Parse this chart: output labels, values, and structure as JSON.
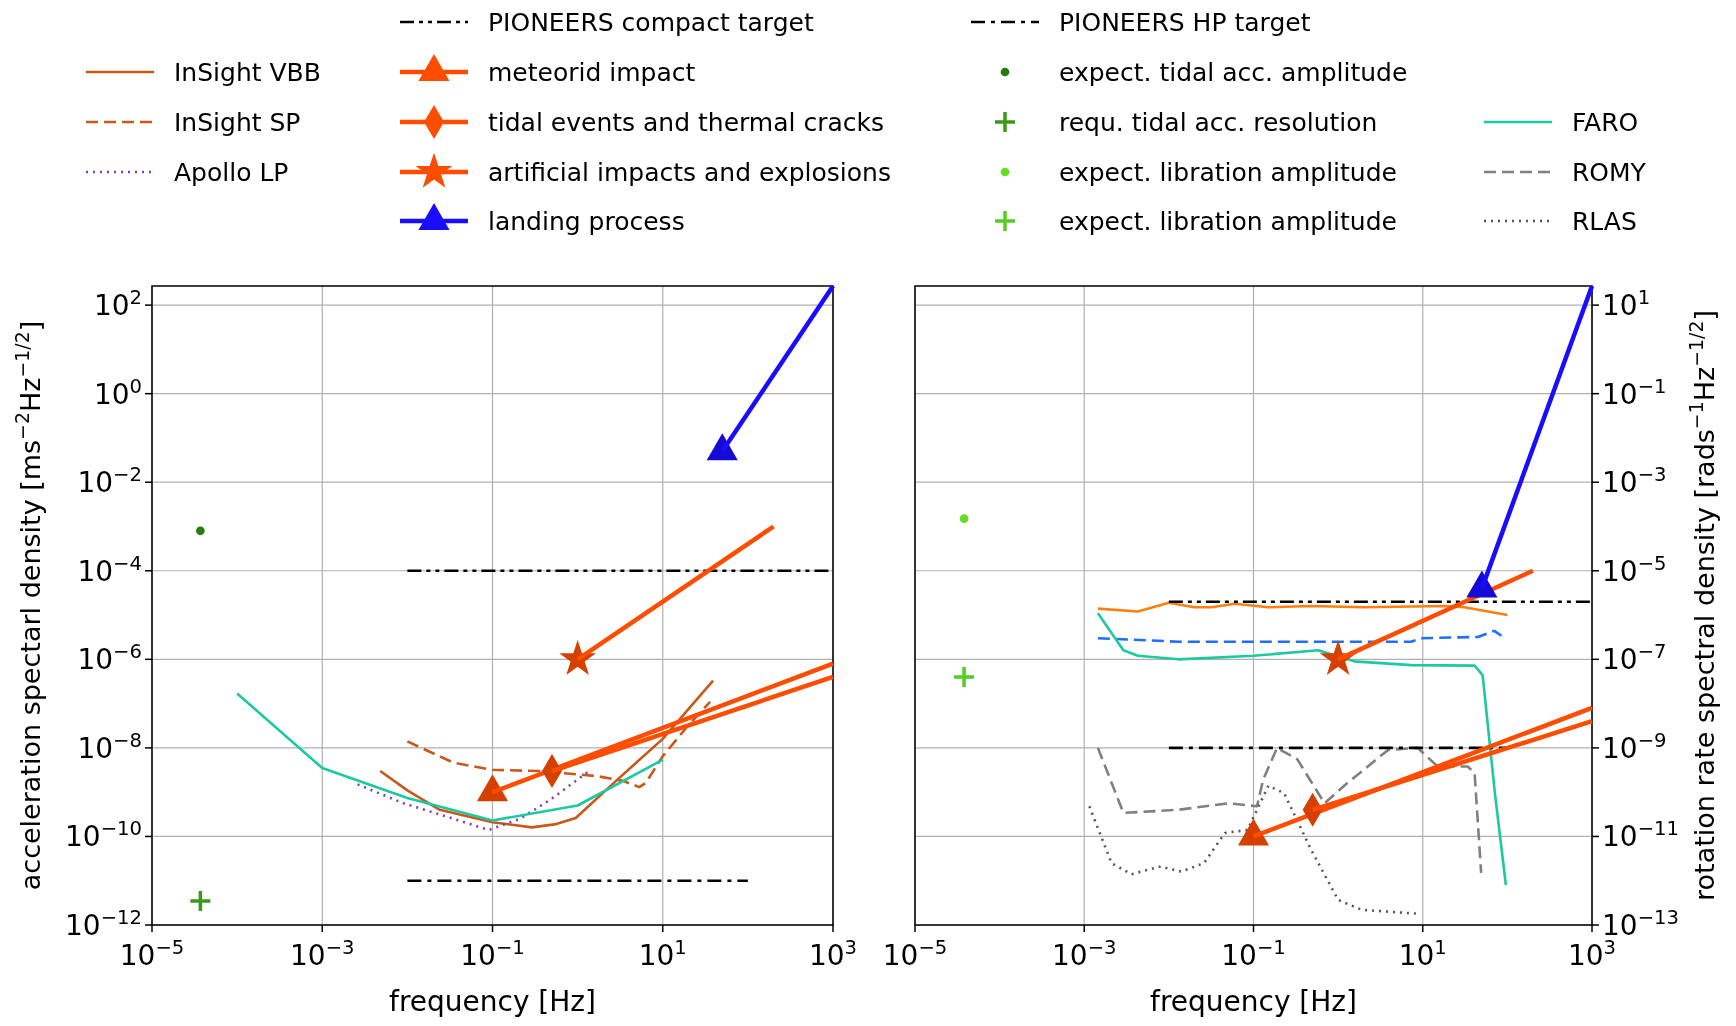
{
  "chart_data": [
    {
      "type": "line",
      "xlabel": "frequency [Hz]",
      "ylabel": "acceleration spectarl density [ms$^{−2}$Hz$^{−1/2}$]",
      "log": "xy",
      "grid": true,
      "legend": "top",
      "xlim": [
        1e-05,
        1000
      ],
      "xticks": [
        {
          "value": 1e-05,
          "label": "10$^{−5}$"
        },
        {
          "value": 0.001,
          "label": "10$^{−3}$"
        },
        {
          "value": 0.1,
          "label": "10$^{−1}$"
        },
        {
          "value": 10,
          "label": "10$^{1}$"
        },
        {
          "value": 1000,
          "label": "10$^{3}$"
        }
      ],
      "ylim": [
        1e-12,
        270
      ],
      "yticks": [
        {
          "value": 1e-12,
          "label": "10$^{−12}$"
        },
        {
          "value": 1e-10,
          "label": "10$^{−10}$"
        },
        {
          "value": 1e-08,
          "label": "10$^{−8}$"
        },
        {
          "value": 1e-06,
          "label": "10$^{−6}$"
        },
        {
          "value": 0.0001,
          "label": "10$^{−4}$"
        },
        {
          "value": 0.01,
          "label": "10$^{−2}$"
        },
        {
          "value": 1,
          "label": "10$^{0}$"
        },
        {
          "value": 100,
          "label": "10$^{2}$"
        }
      ],
      "series": [
        {
          "name": "InSight VBB",
          "color": "#c8581b",
          "line_style": "solid",
          "x": [
            0.0048,
            0.01,
            0.024,
            0.1,
            0.29,
            0.56,
            0.95,
            3,
            10,
            39
          ],
          "values": [
            3e-09,
            1.1e-09,
            4e-10,
            2.1e-10,
            1.6e-10,
            1.9e-10,
            2.6e-10,
            2e-09,
            1.6e-08,
            3.3e-07
          ]
        },
        {
          "name": "InSight SP",
          "color": "#c8581b",
          "line_style": "dashed",
          "x": [
            0.01,
            0.035,
            0.1,
            0.35,
            1.7,
            3.4,
            5.3,
            6.3,
            10,
            19,
            36
          ],
          "values": [
            1.4e-08,
            4.6e-09,
            3.2e-09,
            3e-09,
            2.3e-09,
            1.8e-09,
            1.3e-09,
            1.6e-09,
            6.5e-09,
            2.9e-08,
            1.1e-07
          ]
        },
        {
          "name": "Apollo LP",
          "color": "#7a3fbf",
          "line_style": "dotted",
          "x": [
            0.0026,
            0.009,
            0.035,
            0.09,
            0.21,
            0.49,
            1.3
          ],
          "values": [
            1.5e-09,
            5.6e-10,
            2.5e-10,
            1.4e-10,
            2.5e-10,
            7e-10,
            2.8e-09
          ]
        },
        {
          "color": "#1dc9a0",
          "line_style": "solid",
          "x": [
            0.0001,
            0.001,
            0.01,
            0.1,
            1,
            10
          ],
          "values": [
            1.7e-07,
            3.5e-09,
            7.4e-10,
            2.3e-10,
            5e-10,
            5.4e-09
          ]
        },
        {
          "name": "PIONEERS compact target",
          "color": "#000000",
          "line_style": "dashdotdot",
          "x": [
            0.01,
            1000
          ],
          "values": [
            0.0001,
            0.0001
          ]
        },
        {
          "name": "meteorid impact",
          "color": "#ff4d00",
          "line_style": "solid",
          "marker": "triangle",
          "x": [
            0.1,
            1000
          ],
          "values": [
            1e-09,
            8e-07
          ]
        },
        {
          "name": "tidal events and thermal cracks",
          "color": "#ff4d00",
          "line_style": "solid",
          "marker": "diamond",
          "x": [
            0.5,
            1000
          ],
          "values": [
            3e-09,
            4e-07
          ]
        },
        {
          "name": "artificial impacts and explosions",
          "color": "#ff4d00",
          "line_style": "solid",
          "marker": "star",
          "x": [
            1,
            200
          ],
          "values": [
            1e-06,
            0.001
          ]
        },
        {
          "name": "landing process",
          "color": "#1a0dff",
          "line_style": "solid",
          "marker": "triangle",
          "x": [
            50,
            1000
          ],
          "values": [
            0.05,
            270
          ]
        },
        {
          "name": "PIONEERS HP target",
          "color": "#000000",
          "line_style": "dashdot",
          "x": [
            0.01,
            100
          ],
          "values": [
            1e-11,
            1e-11
          ]
        },
        {
          "name": "expect. tidal acc. amplitude",
          "type": "scatter",
          "color": "#2a7a10",
          "marker": "circle",
          "x": [
            3.7e-05
          ],
          "values": [
            0.0008
          ]
        },
        {
          "name": "requ. tidal acc. resolution",
          "type": "scatter",
          "color": "#3a9a18",
          "marker": "cross",
          "x": [
            3.7e-05
          ],
          "values": [
            3.5e-12
          ]
        }
      ]
    },
    {
      "type": "line",
      "xlabel": "frequency [Hz]",
      "ylabel": "rotation rate spectral density [rads$^{−1}$Hz$^{−1/2}$]",
      "log": "xy",
      "grid": true,
      "legend": "top",
      "xlim": [
        1e-05,
        1000
      ],
      "xticks": [
        {
          "value": 1e-05,
          "label": "10$^{−5}$"
        },
        {
          "value": 0.001,
          "label": "10$^{−3}$"
        },
        {
          "value": 0.1,
          "label": "10$^{−1}$"
        },
        {
          "value": 10,
          "label": "10$^{1}$"
        },
        {
          "value": 1000,
          "label": "10$^{3}$"
        }
      ],
      "ylim": [
        1e-13,
        27
      ],
      "yticks": [
        {
          "value": 1e-13,
          "label": "10$^{−13}$"
        },
        {
          "value": 1e-11,
          "label": "10$^{−11}$"
        },
        {
          "value": 1e-09,
          "label": "10$^{−9}$"
        },
        {
          "value": 1e-07,
          "label": "10$^{−7}$"
        },
        {
          "value": 1e-05,
          "label": "10$^{−5}$"
        },
        {
          "value": 0.001,
          "label": "10$^{−3}$"
        },
        {
          "value": 0.1,
          "label": "10$^{−1}$"
        },
        {
          "value": 10,
          "label": "10$^{1}$"
        }
      ],
      "series": [
        {
          "name": "expect. libration amplitude",
          "type": "scatter",
          "color": "#66dd22",
          "marker": "circle",
          "x": [
            3.8e-05
          ],
          "values": [
            0.00015
          ]
        },
        {
          "name": "expect. libration amplitude",
          "type": "scatter",
          "color": "#55cc22",
          "marker": "cross",
          "x": [
            3.8e-05
          ],
          "values": [
            4e-08
          ]
        },
        {
          "color": "#ff7f0e",
          "line_style": "solid",
          "x": [
            0.00145,
            0.0043,
            0.01,
            0.02,
            0.032,
            0.06,
            0.15,
            0.48,
            2,
            18,
            31,
            100
          ],
          "values": [
            1.4e-06,
            1.2e-06,
            1.9e-06,
            1.5e-06,
            1.5e-06,
            1.8e-06,
            1.5e-06,
            1.6e-06,
            1.5e-06,
            1.6e-06,
            1.5e-06,
            1e-06
          ]
        },
        {
          "color": "#1f6fff",
          "line_style": "dashed",
          "x": [
            0.00145,
            0.013,
            0.1,
            7.3,
            9.5,
            45,
            70,
            85
          ],
          "values": [
            3e-07,
            2.5e-07,
            2.5e-07,
            2.5e-07,
            3e-07,
            3.2e-07,
            4.4e-07,
            3.4e-07
          ]
        },
        {
          "name": "FARO",
          "color": "#1dc9a0",
          "line_style": "solid",
          "x": [
            0.00145,
            0.0029,
            0.0043,
            0.013,
            0.1,
            0.58,
            1.55,
            7.3,
            41,
            51,
            71,
            96
          ],
          "values": [
            1.1e-06,
            1.6e-07,
            1.2e-07,
            1e-07,
            1.2e-07,
            1.6e-07,
            9e-08,
            7.4e-08,
            7.2e-08,
            4.4e-08,
            1e-10,
            8e-13
          ]
        },
        {
          "name": "ROMY",
          "color": "#808080",
          "line_style": "dashed",
          "x": [
            0.00145,
            0.0029,
            0.013,
            0.05,
            0.11,
            0.13,
            0.19,
            0.33,
            0.69,
            1.18,
            3.9,
            8.7,
            15,
            34,
            41,
            49
          ],
          "values": [
            1e-09,
            3.4e-11,
            4e-11,
            5.6e-11,
            4.8e-11,
            1.9e-10,
            1e-09,
            5.5e-10,
            5.6e-11,
            1.4e-10,
            9e-10,
            1e-09,
            3.8e-10,
            3.8e-10,
            2.7e-10,
            1.5e-12
          ]
        },
        {
          "name": "RLAS",
          "color": "#555555",
          "line_style": "dotted",
          "x": [
            0.00115,
            0.0021,
            0.0036,
            0.008,
            0.014,
            0.026,
            0.046,
            0.085,
            0.15,
            0.23,
            0.48,
            1,
            1.9,
            8.7
          ],
          "values": [
            4.8e-11,
            2.5e-12,
            1.4e-12,
            2.1e-12,
            1.6e-12,
            2.5e-12,
            1.2e-11,
            1.4e-11,
            1.4e-10,
            9.5e-11,
            5e-12,
            3.7e-13,
            2.2e-13,
            1.8e-13
          ]
        },
        {
          "color": "#000000",
          "line_style": "dashdotdot",
          "x": [
            0.01,
            1000
          ],
          "values": [
            2e-06,
            2e-06
          ]
        },
        {
          "color": "#000000",
          "line_style": "dashdot",
          "x": [
            0.01,
            100
          ],
          "values": [
            1e-09,
            1e-09
          ]
        },
        {
          "color": "#ff4d00",
          "line_style": "solid",
          "marker": "triangle",
          "x": [
            0.1,
            1000
          ],
          "values": [
            1e-11,
            8e-09
          ]
        },
        {
          "color": "#ff4d00",
          "line_style": "solid",
          "marker": "diamond",
          "x": [
            0.5,
            1000
          ],
          "values": [
            4e-11,
            4e-09
          ]
        },
        {
          "color": "#ff4d00",
          "line_style": "solid",
          "marker": "star",
          "x": [
            1,
            200
          ],
          "values": [
            1e-07,
            1e-05
          ]
        },
        {
          "color": "#1a0dff",
          "line_style": "solid",
          "marker": "triangle",
          "x": [
            50,
            1000
          ],
          "values": [
            4e-06,
            27
          ]
        }
      ]
    }
  ]
}
